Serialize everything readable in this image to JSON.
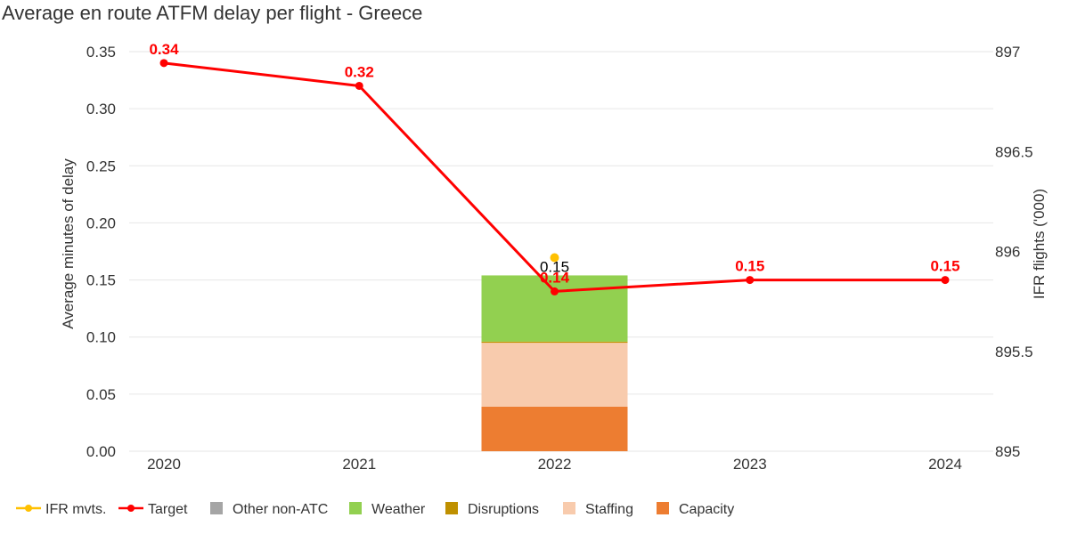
{
  "chart_data": {
    "type": "bar",
    "title": "Average en route ATFM delay per flight - Greece",
    "ylabel": "Average minutes of delay",
    "y2label": "IFR flights ('000)",
    "categories": [
      "2020",
      "2021",
      "2022",
      "2023",
      "2024"
    ],
    "ylim": [
      0,
      0.35
    ],
    "yticks": [
      "0.00",
      "0.05",
      "0.10",
      "0.15",
      "0.20",
      "0.25",
      "0.30",
      "0.35"
    ],
    "y2lim": [
      895,
      897
    ],
    "y2ticks": [
      "895",
      "895.5",
      "896",
      "896.5",
      "897"
    ],
    "grid": true,
    "legend_position": "bottom-left",
    "series": [
      {
        "name": "Capacity",
        "kind": "bar",
        "color": "#ED7D31",
        "values": [
          null,
          null,
          0.039,
          null,
          null
        ]
      },
      {
        "name": "Staffing",
        "kind": "bar",
        "color": "#F8CBAD",
        "values": [
          null,
          null,
          0.056,
          null,
          null
        ]
      },
      {
        "name": "Disruptions",
        "kind": "bar",
        "color": "#BF9000",
        "values": [
          null,
          null,
          0.001,
          null,
          null
        ]
      },
      {
        "name": "Weather",
        "kind": "bar",
        "color": "#92D050",
        "values": [
          null,
          null,
          0.058,
          null,
          null
        ]
      },
      {
        "name": "Other non-ATC",
        "kind": "bar",
        "color": "#A5A5A5",
        "values": [
          null,
          null,
          0,
          null,
          null
        ]
      },
      {
        "name": "Target",
        "kind": "line",
        "color": "#FF0000",
        "values": [
          0.34,
          0.32,
          0.14,
          0.15,
          0.15
        ],
        "labels": [
          "0.34",
          "0.32",
          "0.14",
          "0.15",
          "0.15"
        ]
      },
      {
        "name": "IFR mvts.",
        "kind": "scatter",
        "axis": "right",
        "color": "#FFC000",
        "values": [
          null,
          null,
          896.0,
          null,
          null
        ]
      }
    ],
    "totals": [
      null,
      null,
      "0.15",
      null,
      null
    ],
    "legend_order": [
      "IFR mvts.",
      "Target",
      "Other non-ATC",
      "Weather",
      "Disruptions",
      "Staffing",
      "Capacity"
    ]
  }
}
